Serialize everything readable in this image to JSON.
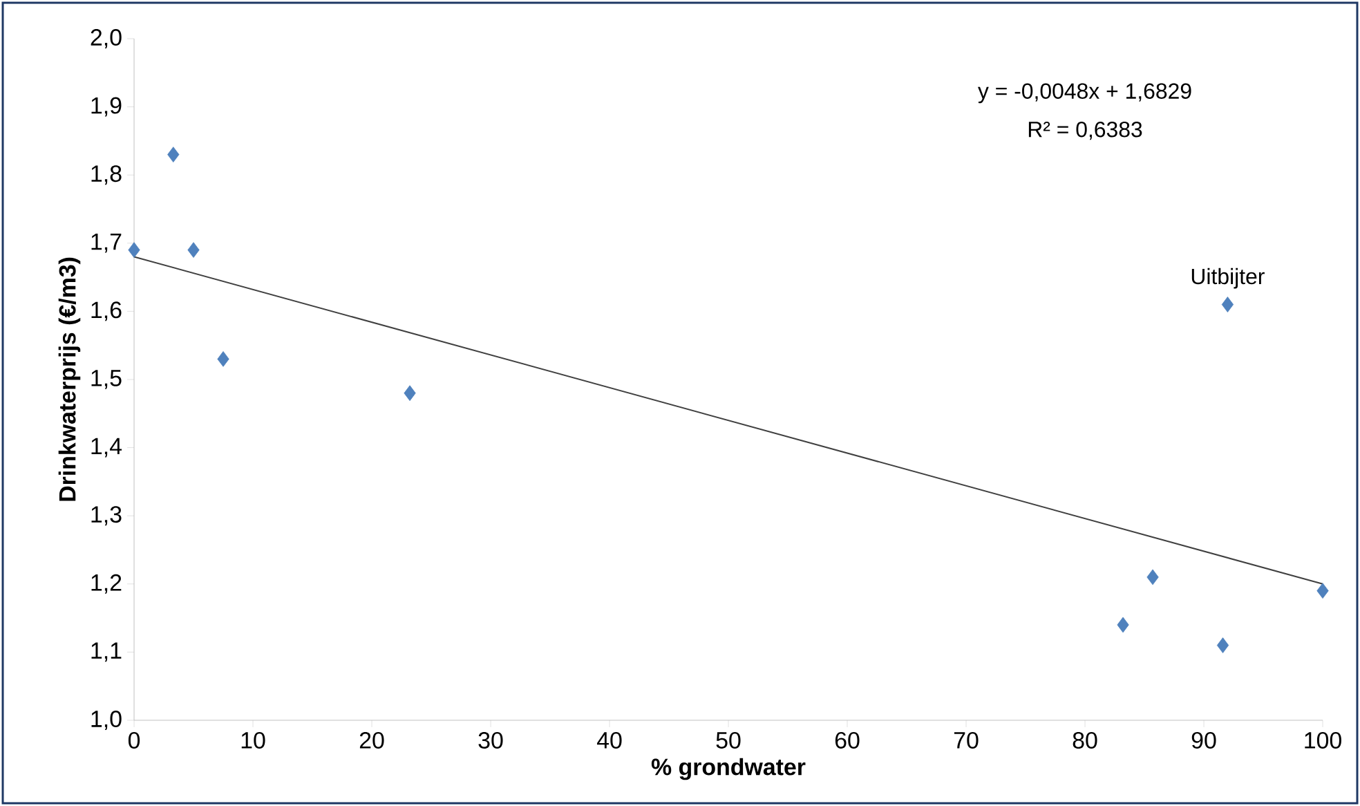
{
  "chart_data": {
    "type": "scatter",
    "xlabel": "% grondwater",
    "ylabel": "Drinkwaterprijs (€/m3)",
    "xlim": [
      0,
      100
    ],
    "xticks": [
      0,
      10,
      20,
      30,
      40,
      50,
      60,
      70,
      80,
      90,
      100
    ],
    "ylim": [
      1.0,
      2.0
    ],
    "yticks": [
      {
        "value": 1.0,
        "label": "1,0"
      },
      {
        "value": 1.1,
        "label": "1,1"
      },
      {
        "value": 1.2,
        "label": "1,2"
      },
      {
        "value": 1.3,
        "label": "1,3"
      },
      {
        "value": 1.4,
        "label": "1,4"
      },
      {
        "value": 1.5,
        "label": "1,5"
      },
      {
        "value": 1.6,
        "label": "1,6"
      },
      {
        "value": 1.7,
        "label": "1,7"
      },
      {
        "value": 1.8,
        "label": "1,8"
      },
      {
        "value": 1.9,
        "label": "1,9"
      },
      {
        "value": 2.0,
        "label": "2,0"
      }
    ],
    "grid": false,
    "series": [
      {
        "marker": "diamond",
        "color": "#4f81bd",
        "x": [
          0,
          3.3,
          5.0,
          7.5,
          23.2,
          83.2,
          85.7,
          91.6,
          92.0,
          100
        ],
        "values": [
          1.69,
          1.83,
          1.69,
          1.53,
          1.48,
          1.14,
          1.21,
          1.11,
          1.61,
          1.19
        ]
      },
      {
        "type": "line",
        "marker": "none",
        "line_style": "solid",
        "color": "#404040",
        "x": [
          0,
          100
        ],
        "values": [
          1.68,
          1.2
        ]
      }
    ],
    "annotations": [
      "y = -0,0048x + 1,6829",
      "R² = 0,6383",
      {
        "text": "Uitbijter",
        "x": 92.0,
        "y": 1.61
      }
    ]
  }
}
